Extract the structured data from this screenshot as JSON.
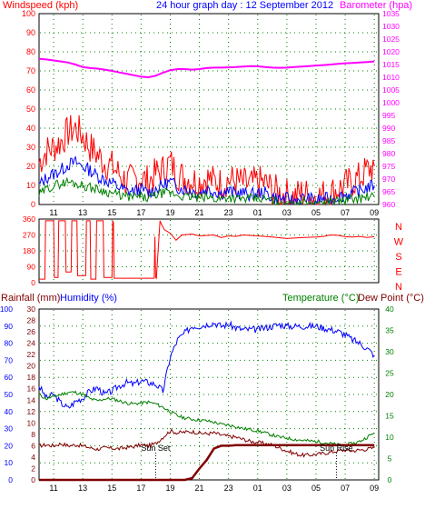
{
  "header": {
    "left_label": "Windspeed (kph)",
    "center_label": "24 hour graph day : 12 September 2012",
    "right_label": "Barometer (hpa)"
  },
  "lower_header": {
    "rainfall_label": "Rainfall (mm)",
    "humidity_label": "Humidity (%)",
    "temperature_label": "Temperature (°C)",
    "dewpoint_label": "Dew Point (°C)"
  },
  "colors": {
    "wind_gust": "#ff0000",
    "wind_avg": "#0000ff",
    "wind_low": "#008000",
    "barometer": "#ff00ff",
    "direction": "#ff0000",
    "humidity": "#0000ff",
    "temperature": "#008000",
    "dewpoint": "#800000",
    "rainfall": "#800000",
    "grid": "#008000",
    "axis_text": "#0000ff",
    "sun_marker": "#000000"
  },
  "x_ticks": [
    "11",
    "13",
    "15",
    "17",
    "19",
    "21",
    "23",
    "01",
    "03",
    "05",
    "07",
    "09"
  ],
  "chart_data": [
    {
      "type": "line",
      "title": "24 hour graph day : 12 September 2012",
      "xlabel": "",
      "ylabel": "Windspeed (kph)",
      "x": [
        10,
        10.5,
        11,
        11.5,
        12,
        12.5,
        13,
        13.5,
        14,
        14.5,
        15,
        15.5,
        16,
        16.5,
        17,
        17.5,
        18,
        18.5,
        19,
        19.5,
        20,
        20.5,
        21,
        21.5,
        22,
        22.5,
        23,
        23.5,
        24,
        24.5,
        25,
        25.5,
        26,
        26.5,
        27,
        27.5,
        28,
        28.5,
        29,
        29.5,
        30,
        30.5,
        31,
        31.5,
        32,
        32.5,
        33
      ],
      "ylim": [
        0,
        100
      ],
      "y_ticks": [
        0,
        10,
        20,
        30,
        40,
        50,
        60,
        70,
        80,
        90,
        100
      ],
      "series": [
        {
          "name": "Windspeed",
          "axis": "left",
          "color": "#ff0000",
          "values": [
            22,
            28,
            30,
            33,
            38,
            40,
            36,
            30,
            26,
            22,
            20,
            16,
            12,
            13,
            14,
            12,
            16,
            18,
            22,
            16,
            14,
            13,
            12,
            14,
            12,
            11,
            13,
            12,
            11,
            10,
            12,
            11,
            8,
            6,
            5,
            4,
            6,
            5,
            4,
            5,
            6,
            8,
            10,
            12,
            14,
            18,
            20
          ]
        },
        {
          "name": "",
          "axis": "left",
          "color": "#0000ff",
          "values": [
            10,
            14,
            16,
            18,
            21,
            22,
            20,
            18,
            15,
            13,
            11,
            9,
            7,
            7,
            8,
            6,
            8,
            10,
            12,
            9,
            8,
            7,
            6,
            8,
            7,
            6,
            7,
            6,
            6,
            5,
            6,
            6,
            4,
            3,
            3,
            2,
            3,
            3,
            2,
            3,
            3,
            4,
            5,
            6,
            7,
            9,
            10
          ]
        },
        {
          "name": "",
          "axis": "left",
          "color": "#008000",
          "values": [
            5,
            8,
            10,
            11,
            12,
            11,
            10,
            9,
            8,
            7,
            6,
            5,
            4,
            4,
            4,
            3,
            5,
            6,
            6,
            5,
            4,
            4,
            3,
            4,
            3,
            3,
            4,
            3,
            3,
            3,
            3,
            3,
            2,
            1,
            1,
            1,
            2,
            1,
            1,
            1,
            2,
            2,
            2,
            3,
            3,
            4,
            4
          ]
        },
        {
          "name": "Barometer",
          "axis": "right",
          "color": "#ff00ff",
          "values": [
            1017.2,
            1017.0,
            1016.6,
            1016.2,
            1015.8,
            1015.0,
            1014.0,
            1013.6,
            1013.4,
            1013.0,
            1012.5,
            1011.9,
            1011.4,
            1010.8,
            1010.2,
            1010.0,
            1010.6,
            1011.8,
            1012.8,
            1013.2,
            1013.2,
            1013.0,
            1013.2,
            1013.6,
            1013.8,
            1013.8,
            1013.9,
            1014.0,
            1014.2,
            1014.4,
            1014.3,
            1014.0,
            1013.8,
            1013.7,
            1013.8,
            1014.0,
            1014.2,
            1014.4,
            1014.6,
            1014.8,
            1015.0,
            1015.3,
            1015.5,
            1015.6,
            1015.8,
            1016.0,
            1016.2
          ]
        }
      ],
      "y2lim": [
        960,
        1035
      ],
      "y2_ticks": [
        960,
        965,
        970,
        975,
        980,
        985,
        990,
        995,
        1000,
        1005,
        1010,
        1015,
        1020,
        1025,
        1030,
        1035
      ],
      "grid": true
    },
    {
      "type": "line",
      "title": "",
      "ylabel": "",
      "ylim": [
        0,
        360
      ],
      "y_ticks": [
        0,
        90,
        180,
        270,
        360
      ],
      "right_labels": [
        "N",
        "W",
        "S",
        "E",
        "N"
      ],
      "series": [
        {
          "name": "",
          "color": "#ff0000",
          "x": [
            10,
            10.4,
            10.45,
            11,
            11.05,
            11.3,
            11.35,
            11.8,
            11.85,
            12.2,
            12.25,
            12.6,
            12.65,
            13.2,
            13.25,
            13.5,
            13.55,
            13.9,
            13.95,
            14.4,
            14.45,
            15.0,
            15.05,
            15.1,
            15.15,
            17.9,
            17.95,
            18.0,
            18.05,
            18.3,
            18.4,
            18.6,
            19.0,
            19.4,
            19.8,
            20.5,
            21.0,
            22.0,
            22.5,
            23.0,
            23.5,
            24.0,
            25.0,
            26.0,
            27.0,
            28.0,
            29.0,
            29.5,
            30.0,
            30.5,
            31.0,
            31.5,
            32.0,
            32.5,
            33.0
          ],
          "values": [
            20,
            20,
            350,
            350,
            30,
            30,
            350,
            350,
            60,
            60,
            350,
            350,
            40,
            40,
            350,
            350,
            20,
            20,
            350,
            350,
            30,
            30,
            350,
            340,
            25,
            25,
            260,
            30,
            25,
            350,
            330,
            300,
            280,
            240,
            270,
            275,
            265,
            270,
            255,
            265,
            262,
            270,
            265,
            258,
            250,
            255,
            258,
            262,
            270,
            268,
            260,
            258,
            262,
            256,
            260
          ]
        }
      ],
      "grid": true
    },
    {
      "type": "line",
      "title": "",
      "xlabel": "",
      "ylabel": "Rainfall (mm)",
      "x": [
        10,
        10.5,
        11,
        11.5,
        12,
        12.5,
        13,
        13.5,
        14,
        14.5,
        15,
        15.5,
        16,
        16.5,
        17,
        17.5,
        18,
        18.5,
        19,
        19.5,
        20,
        20.5,
        21,
        21.5,
        22,
        22.5,
        23,
        23.5,
        24,
        24.5,
        25,
        25.5,
        26,
        26.5,
        27,
        27.5,
        28,
        28.5,
        29,
        29.5,
        30,
        30.5,
        31,
        31.5,
        32,
        32.5,
        33
      ],
      "ylim": [
        0,
        100
      ],
      "y_ticks": [
        0,
        10,
        20,
        30,
        40,
        50,
        60,
        70,
        80,
        90,
        100
      ],
      "y_mid_ticks": [
        0,
        2,
        4,
        6,
        8,
        10,
        12,
        14,
        16,
        18,
        20,
        22,
        24,
        26,
        28,
        30
      ],
      "y2lim": [
        0,
        40
      ],
      "y2_ticks": [
        0,
        5,
        10,
        15,
        20,
        25,
        30,
        35,
        40
      ],
      "series": [
        {
          "name": "Humidity",
          "axis": "left",
          "color": "#0000ff",
          "values": [
            55,
            48,
            50,
            45,
            42,
            46,
            48,
            52,
            54,
            50,
            52,
            55,
            57,
            56,
            58,
            57,
            56,
            52,
            72,
            82,
            86,
            90,
            90,
            91,
            92,
            90,
            91,
            89,
            88,
            88,
            88,
            89,
            90,
            91,
            90,
            90,
            90,
            90,
            90,
            89,
            88,
            87,
            85,
            82,
            80,
            77,
            73
          ]
        },
        {
          "name": "Temperature",
          "axis": "right",
          "color": "#008000",
          "values": [
            20,
            19,
            19.5,
            20,
            20.5,
            20.5,
            20,
            19,
            18.5,
            19,
            19,
            18.5,
            18,
            17.8,
            18,
            18.2,
            17.8,
            17,
            16,
            15,
            14.5,
            14.2,
            14,
            13.8,
            13.5,
            13,
            12.8,
            12.5,
            12,
            11.8,
            11.5,
            11,
            10.5,
            10,
            9.8,
            9.5,
            9.3,
            9.1,
            9,
            8.8,
            8.5,
            8.2,
            8.2,
            8.5,
            9,
            10,
            11
          ]
        },
        {
          "name": "Dew Point",
          "axis": "right",
          "color": "#800000",
          "values": [
            8,
            8.2,
            8,
            8.5,
            8,
            8.2,
            8,
            7.5,
            7.2,
            7.5,
            7.4,
            7.3,
            7.6,
            7.8,
            8.2,
            8,
            8.5,
            10,
            11.5,
            11,
            11.2,
            11.3,
            11,
            10.8,
            11,
            10.5,
            10.2,
            10,
            9.5,
            9,
            8.8,
            8.5,
            8.2,
            7.5,
            6.8,
            6.2,
            5.8,
            5.8,
            6,
            6.2,
            6.5,
            6.8,
            7,
            6.8,
            7,
            7.2,
            7.5
          ]
        },
        {
          "name": "Rainfall",
          "axis": "mid",
          "color": "#800000",
          "values": [
            0,
            0,
            0,
            0,
            0,
            0,
            0,
            0,
            0,
            0,
            0,
            0,
            0,
            0,
            0,
            0,
            0,
            0,
            0,
            0,
            0,
            0.3,
            2,
            3.5,
            5.5,
            6,
            6,
            6.1,
            6.1,
            6.1,
            6.1,
            6.1,
            6.1,
            6.1,
            6.1,
            6.1,
            6.1,
            6.1,
            6.1,
            6.1,
            6.1,
            6.1,
            6.1,
            6.1,
            6.1,
            6.1,
            6.1
          ]
        }
      ],
      "annotations": [
        {
          "text": "Sun Set",
          "x": 18.0
        },
        {
          "text": "Sun Rise",
          "x": 30.4
        }
      ],
      "grid": true
    }
  ]
}
